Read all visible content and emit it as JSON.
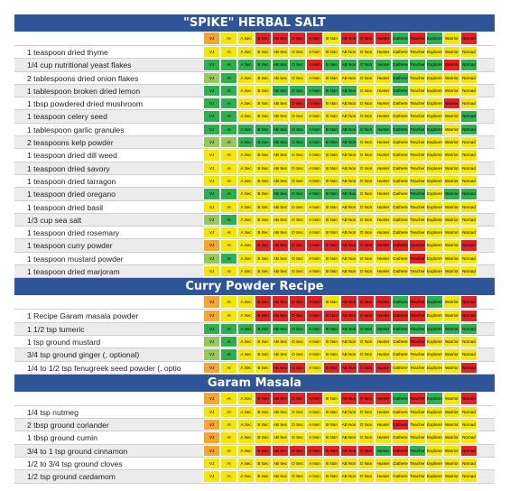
{
  "colors": {
    "y": "#f5e600",
    "g": "#2fb04e",
    "r": "#e02424",
    "o": "#f4a630",
    "l": "#96c95b",
    "header": "#2e5597"
  },
  "columns": [
    "VJ",
    "AI",
    "A Sec",
    "B Sec",
    "AB Sec",
    "O Sec",
    "A Non",
    "B Non",
    "AB Non",
    "O Non",
    "Hunter",
    "Gatherer",
    "Teacher",
    "Explorer",
    "Warrior",
    "Nomad"
  ],
  "sections": [
    {
      "title": "\"SPIKE\" HERBAL SALT",
      "header": "oyyrrrryrrrgrgyr",
      "rows": [
        {
          "label": "1 teaspoon dried thyme",
          "colors": "yyyyyyyyyyyyyyyy"
        },
        {
          "label": "1/4 cup nutritional yeast flakes",
          "colors": "ggggggrgggggggrg"
        },
        {
          "label": "2 tablespoons dried onion flakes",
          "colors": "lgyyyyyyyyygyyyy"
        },
        {
          "label": "1 tablespoon broken dried lemon",
          "colors": "ggyygggggyygyyyy"
        },
        {
          "label": "1 tbsp powdered dried mushroom",
          "colors": "ggyyyrryyyyyyyry"
        },
        {
          "label": "1 teaspoon celery seed",
          "colors": "ggyyyyyyyyyyyyyg"
        },
        {
          "label": "1 tablespoon garlic granules",
          "colors": "ggggggggggggggyg"
        },
        {
          "label": "2 teaspoons kelp powder",
          "colors": "llgggggggyyyyyyy"
        },
        {
          "label": "1 teaspoon dried dill weed",
          "colors": "yyyyyyyyyyyyyyyy"
        },
        {
          "label": "1 teaspoon dried savory",
          "colors": "yyyyyyyyyyyyyyyy"
        },
        {
          "label": "1 teaspoon dried tarragon",
          "colors": "yyyyyyyyyyyyyyyy"
        },
        {
          "label": "1 teaspoon dried oregano",
          "colors": "ggyygggggyyygygg"
        },
        {
          "label": "1 teaspoon dried basil",
          "colors": "yyyyyyyyyyyyyyyy"
        },
        {
          "label": "1/3 cup sea salt",
          "colors": "lgyyyyyyyyyyyyyy"
        },
        {
          "label": "1 teaspoon dried rosemary",
          "colors": "yyyyyyyyyyyyyyyy"
        },
        {
          "label": "1 teaspoon curry powder",
          "colors": "oyyrrrrrrrrrryyr"
        },
        {
          "label": "1 teaspoon mustard powder",
          "colors": "lgyyyyyyyyyyryyy"
        },
        {
          "label": "1 teaspoon dried marjoram",
          "colors": "yyyyyyyyyyyyyyyy"
        }
      ]
    },
    {
      "title": "Curry Powder Recipe",
      "header": "oyyrrrryrrrgrgyr",
      "rows": [
        {
          "label": "1 Recipe Garam masala powder",
          "colors": "oyyrrrrrrrrrryyr"
        },
        {
          "label": "1 1/2 tsp tumeric",
          "colors": "gggggggggggggggg"
        },
        {
          "label": "1 tsp ground mustard",
          "colors": "lgyyyyyyyyyyryyy"
        },
        {
          "label": "3/4 tsp ground ginger (, optional)",
          "colors": "lgyyyyyyyyyyyyyy"
        },
        {
          "label": "1/4 to 1/2 tsp fenugreek seed powder (, optio",
          "colors": "oyyyrryrrrryyyyr"
        }
      ]
    },
    {
      "title": "Garam Masala",
      "header": "oyyrrrryrrrgrgyr",
      "rows": [
        {
          "label": "1/4 tsp nutmeg",
          "colors": "yyyyyyyyyyyyyyyy"
        },
        {
          "label": "2 tbsp ground coriander",
          "colors": "oyyyyyyyyyyryyyy"
        },
        {
          "label": "1 tbsp ground cumin",
          "colors": "oyyyyyyyyyyyyyyy"
        },
        {
          "label": "3/4 to 1 tsp ground cinnamon",
          "colors": "oyyrrrrrrrgrgyyr"
        },
        {
          "label": "1/2 to 3/4 tsp ground cloves",
          "colors": "yyyyyyyyyyyyyyyy"
        },
        {
          "label": "1/2 tsp ground cardamom",
          "colors": "yyyyyyyyyyyyyyyy"
        }
      ]
    }
  ]
}
